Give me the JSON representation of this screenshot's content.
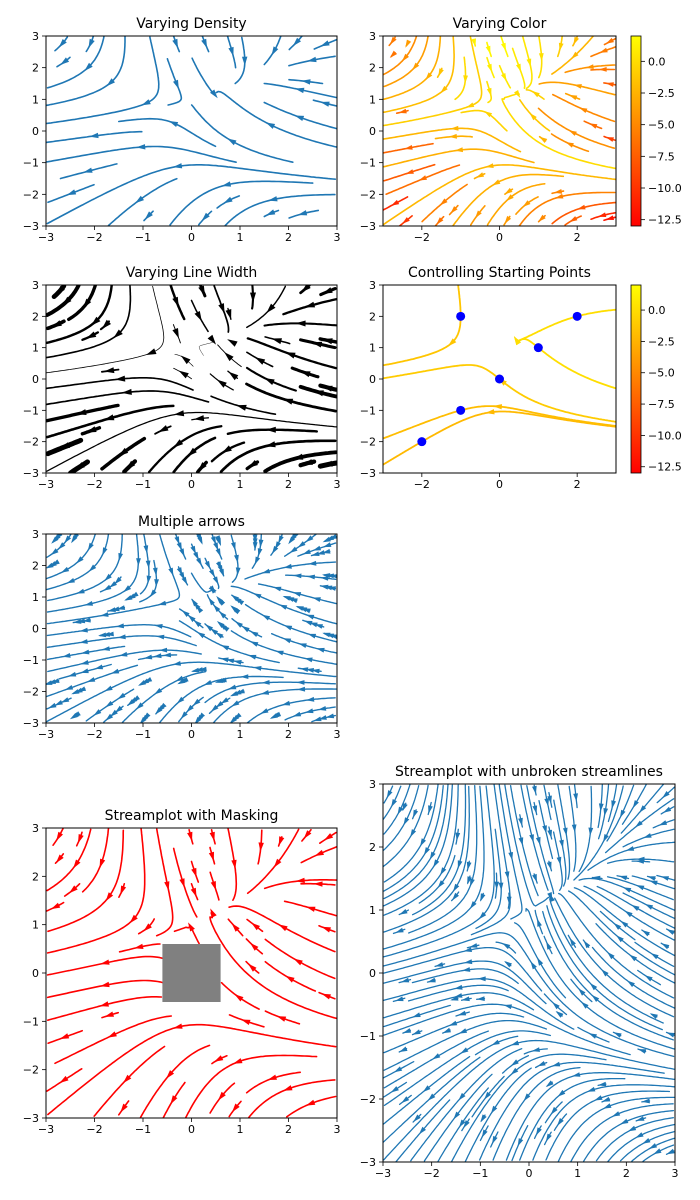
{
  "chart_data": [
    {
      "id": "density",
      "type": "streamplot",
      "title": "Varying Density",
      "xlim": [
        -3,
        3
      ],
      "ylim": [
        -3,
        3
      ],
      "xticks": [
        -3,
        -2,
        -1,
        0,
        1,
        2,
        3
      ],
      "yticks": [
        -3,
        -2,
        -1,
        0,
        1,
        2,
        3
      ],
      "color": "#1f77b4",
      "grid": false
    },
    {
      "id": "color",
      "type": "streamplot",
      "title": "Varying Color",
      "xlim": [
        -3,
        3
      ],
      "ylim": [
        -3,
        3
      ],
      "xticks": [
        -2,
        0,
        2
      ],
      "yticks": [
        -3,
        -2,
        -1,
        0,
        1,
        2,
        3
      ],
      "colormap": "autumn",
      "colorbar": {
        "range": [
          -13,
          2
        ],
        "ticks": [
          "0.0",
          "−2.5",
          "−5.0",
          "−7.5",
          "−10.0",
          "−12.5"
        ]
      },
      "grid": false
    },
    {
      "id": "linewidth",
      "type": "streamplot",
      "title": "Varying Line Width",
      "xlim": [
        -3,
        3
      ],
      "ylim": [
        -3,
        3
      ],
      "xticks": [
        -3,
        -2,
        -1,
        0,
        1,
        2,
        3
      ],
      "yticks": [
        -3,
        -2,
        -1,
        0,
        1,
        2,
        3
      ],
      "color": "#000000",
      "grid": false
    },
    {
      "id": "startpoints",
      "type": "streamplot",
      "title": "Controlling Starting Points",
      "xlim": [
        -3,
        3
      ],
      "ylim": [
        -3,
        3
      ],
      "xticks": [
        -2,
        0,
        2
      ],
      "yticks": [
        -3,
        -2,
        -1,
        0,
        1,
        2,
        3
      ],
      "colormap": "autumn",
      "start_points": [
        [
          -2,
          -2
        ],
        [
          -1,
          -1
        ],
        [
          -1,
          2
        ],
        [
          0,
          0
        ],
        [
          1,
          1
        ],
        [
          2,
          2
        ]
      ],
      "colorbar": {
        "range": [
          -13,
          2
        ],
        "ticks": [
          "0.0",
          "−2.5",
          "−5.0",
          "−7.5",
          "−10.0",
          "−12.5"
        ]
      },
      "grid": false
    },
    {
      "id": "arrows",
      "type": "streamplot",
      "title": "Multiple arrows",
      "xlim": [
        -3,
        3
      ],
      "ylim": [
        -3,
        3
      ],
      "xticks": [
        -3,
        -2,
        -1,
        0,
        1,
        2,
        3
      ],
      "yticks": [
        -3,
        -2,
        -1,
        0,
        1,
        2,
        3
      ],
      "color": "#1f77b4",
      "grid": false
    },
    {
      "id": "masking",
      "type": "streamplot",
      "title": "Streamplot with Masking",
      "xlim": [
        -3,
        3
      ],
      "ylim": [
        -3,
        3
      ],
      "xticks": [
        -3,
        -2,
        -1,
        0,
        1,
        2,
        3
      ],
      "yticks": [
        -3,
        -2,
        -1,
        0,
        1,
        2,
        3
      ],
      "color": "#ff0000",
      "mask_box": {
        "x": [
          -0.6,
          0.6
        ],
        "y": [
          -0.6,
          0.6
        ],
        "color": "#808080"
      },
      "grid": false
    },
    {
      "id": "unbroken",
      "type": "streamplot",
      "title": "Streamplot with unbroken streamlines",
      "xlim": [
        -3,
        3
      ],
      "ylim": [
        -3,
        3
      ],
      "xticks": [
        -3,
        -2,
        -1,
        0,
        1,
        2,
        3
      ],
      "yticks": [
        -3,
        -2,
        -1,
        0,
        1,
        2,
        3
      ],
      "color": "#1f77b4",
      "grid": false
    }
  ]
}
